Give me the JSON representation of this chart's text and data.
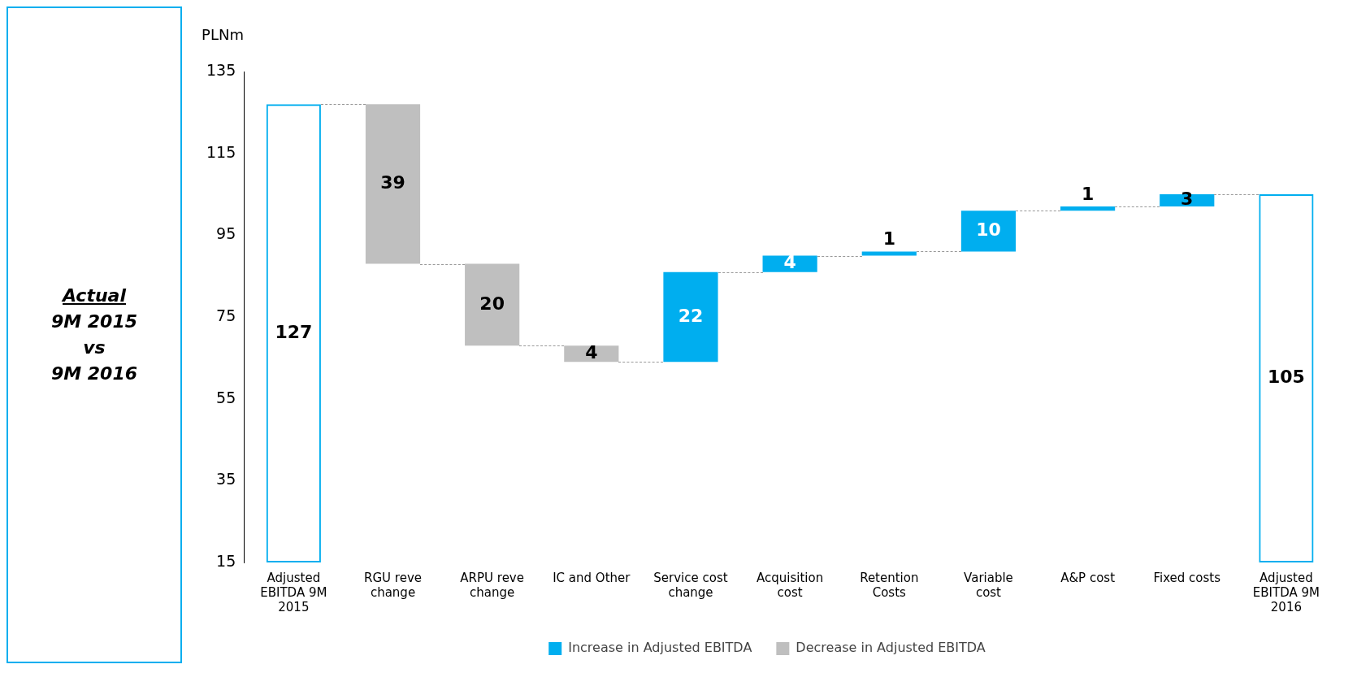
{
  "chart_data": {
    "type": "bar",
    "ylabel": "PLNm",
    "categories": [
      "Adjusted EBITDA 9M 2015",
      "RGU reve change",
      "ARPU reve change",
      "IC and Other",
      "Service cost change",
      "Acquisition cost",
      "Retention Costs",
      "Variable cost",
      "A&P cost",
      "Fixed costs",
      "Adjusted EBITDA 9M 2016"
    ],
    "series": [
      {
        "color": "#00aeef",
        "base": [
          15,
          null,
          null,
          null,
          null,
          null,
          null,
          null,
          null,
          null,
          15
        ],
        "values": [
          112,
          null,
          null,
          null,
          null,
          null,
          null,
          null,
          null,
          null,
          90
        ],
        "value_labels": [
          "127",
          null,
          null,
          null,
          null,
          null,
          null,
          null,
          null,
          null,
          "105"
        ]
      },
      {
        "name": "Increase in Adjusted EBITDA",
        "color": "#00aeef",
        "base": [
          null,
          null,
          null,
          null,
          64,
          86,
          90,
          91,
          101,
          102,
          null
        ],
        "values": [
          null,
          null,
          null,
          null,
          22,
          4,
          1,
          10,
          1,
          3,
          null
        ],
        "value_labels": [
          null,
          null,
          null,
          null,
          "22",
          "4",
          "1",
          "10",
          "1",
          "3",
          null
        ]
      },
      {
        "name": "Decrease in Adjusted EBITDA",
        "color": "#bfbfbf",
        "base": [
          null,
          88,
          68,
          64,
          null,
          null,
          null,
          null,
          null,
          null,
          null
        ],
        "values": [
          null,
          39,
          20,
          4,
          null,
          null,
          null,
          null,
          null,
          null,
          null
        ],
        "value_labels": [
          null,
          "39",
          "20",
          "4",
          null,
          null,
          null,
          null,
          null,
          null,
          null
        ]
      }
    ],
    "ylim": [
      15,
      135
    ],
    "yticks": [
      15,
      35,
      55,
      75,
      95,
      115,
      135
    ],
    "grid": false,
    "legend": "bottom",
    "annotations": [
      "Actual",
      "9M 2015",
      "vs",
      "9M 2016"
    ]
  }
}
